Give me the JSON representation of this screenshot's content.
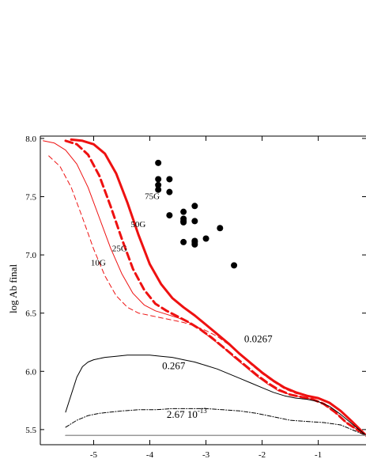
{
  "chart_data": {
    "type": "line",
    "ylabel": "log Ab final",
    "xlabel": "",
    "xlim": [
      -5.95,
      -0.15
    ],
    "ylim": [
      5.37,
      8.02
    ],
    "x_ticks": [
      -5,
      -4,
      -3,
      -2,
      -1
    ],
    "x_tick_labels": [
      "-5",
      "-4",
      "-3",
      "-2",
      "-1"
    ],
    "y_ticks": [
      5.5,
      6.0,
      6.5,
      7.0,
      7.5,
      8.0
    ],
    "y_tick_labels": [
      "5.5",
      "6.0",
      "6.5",
      "7.0",
      "7.5",
      "8.0"
    ],
    "series": [
      {
        "name": "10G",
        "color": "#ee1111",
        "style": "dashed-thin",
        "x": [
          -5.8,
          -5.6,
          -5.4,
          -5.2,
          -5.0,
          -4.8,
          -4.6,
          -4.4,
          -4.2,
          -4.0,
          -3.8,
          -3.6,
          -3.4,
          -3.2,
          -3.0,
          -2.8,
          -2.6,
          -2.4,
          -2.2,
          -2.0,
          -1.8,
          -1.6,
          -1.4,
          -1.2,
          -1.0,
          -0.8,
          -0.6,
          -0.4,
          -0.15
        ],
        "y": [
          7.85,
          7.76,
          7.58,
          7.32,
          7.05,
          6.82,
          6.65,
          6.55,
          6.5,
          6.48,
          6.46,
          6.44,
          6.42,
          6.39,
          6.35,
          6.3,
          6.23,
          6.15,
          6.06,
          5.98,
          5.91,
          5.85,
          5.81,
          5.79,
          5.77,
          5.73,
          5.66,
          5.57,
          5.45
        ]
      },
      {
        "name": "25G",
        "color": "#ee1111",
        "style": "solid-thin",
        "x": [
          -5.9,
          -5.7,
          -5.5,
          -5.3,
          -5.1,
          -4.9,
          -4.7,
          -4.5,
          -4.3,
          -4.1,
          -3.9,
          -3.7,
          -3.5,
          -3.3,
          -3.1,
          -2.9,
          -2.7,
          -2.5,
          -2.3,
          -2.1,
          -1.9,
          -1.7,
          -1.5,
          -1.3,
          -1.1,
          -0.9,
          -0.7,
          -0.5,
          -0.15
        ],
        "y": [
          7.98,
          7.96,
          7.9,
          7.78,
          7.58,
          7.32,
          7.06,
          6.84,
          6.67,
          6.57,
          6.52,
          6.49,
          6.46,
          6.42,
          6.36,
          6.28,
          6.21,
          6.12,
          6.04,
          5.96,
          5.89,
          5.83,
          5.8,
          5.78,
          5.76,
          5.72,
          5.65,
          5.56,
          5.45
        ]
      },
      {
        "name": "50G",
        "color": "#ee1111",
        "style": "dashed-thick",
        "x": [
          -5.5,
          -5.3,
          -5.1,
          -4.9,
          -4.7,
          -4.5,
          -4.3,
          -4.1,
          -3.9,
          -3.7,
          -3.5,
          -3.3,
          -3.1,
          -2.9,
          -2.7,
          -2.5,
          -2.3,
          -2.1,
          -1.9,
          -1.7,
          -1.5,
          -1.3,
          -1.1,
          -0.9,
          -0.7,
          -0.5,
          -0.15
        ],
        "y": [
          7.98,
          7.95,
          7.86,
          7.68,
          7.42,
          7.14,
          6.88,
          6.7,
          6.58,
          6.52,
          6.47,
          6.42,
          6.36,
          6.29,
          6.21,
          6.13,
          6.05,
          5.97,
          5.9,
          5.84,
          5.8,
          5.78,
          5.76,
          5.72,
          5.65,
          5.56,
          5.45
        ]
      },
      {
        "name": "75G",
        "color": "#ee1111",
        "style": "solid-thick",
        "x": [
          -5.4,
          -5.2,
          -5.0,
          -4.8,
          -4.6,
          -4.4,
          -4.2,
          -4.0,
          -3.8,
          -3.6,
          -3.4,
          -3.2,
          -3.0,
          -2.8,
          -2.6,
          -2.4,
          -2.2,
          -2.0,
          -1.8,
          -1.6,
          -1.4,
          -1.2,
          -1.0,
          -0.8,
          -0.6,
          -0.4,
          -0.15
        ],
        "y": [
          7.99,
          7.98,
          7.95,
          7.87,
          7.7,
          7.45,
          7.17,
          6.92,
          6.75,
          6.63,
          6.55,
          6.48,
          6.4,
          6.32,
          6.24,
          6.15,
          6.07,
          5.99,
          5.92,
          5.86,
          5.82,
          5.79,
          5.77,
          5.73,
          5.66,
          5.57,
          5.45
        ]
      },
      {
        "name": "0.267",
        "color": "#000000",
        "style": "solid-thin",
        "x": [
          -5.5,
          -5.4,
          -5.3,
          -5.2,
          -5.1,
          -5.0,
          -4.8,
          -4.6,
          -4.4,
          -4.2,
          -4.0,
          -3.8,
          -3.6,
          -3.4,
          -3.2,
          -3.0,
          -2.8,
          -2.6,
          -2.4,
          -2.2,
          -2.0,
          -1.8,
          -1.6,
          -1.4,
          -1.2,
          -1.0,
          -0.8,
          -0.6,
          -0.4,
          -0.15
        ],
        "y": [
          5.65,
          5.8,
          5.95,
          6.04,
          6.08,
          6.1,
          6.12,
          6.13,
          6.14,
          6.14,
          6.14,
          6.13,
          6.12,
          6.1,
          6.08,
          6.05,
          6.02,
          5.98,
          5.94,
          5.9,
          5.86,
          5.82,
          5.79,
          5.77,
          5.76,
          5.74,
          5.7,
          5.63,
          5.55,
          5.45
        ]
      },
      {
        "name": "2.67 10-13",
        "color": "#000000",
        "style": "dashdot",
        "x": [
          -5.5,
          -5.3,
          -5.1,
          -4.9,
          -4.7,
          -4.5,
          -4.2,
          -3.9,
          -3.6,
          -3.3,
          -3.0,
          -2.7,
          -2.4,
          -2.1,
          -1.8,
          -1.5,
          -1.2,
          -0.9,
          -0.6,
          -0.4,
          -0.15
        ],
        "y": [
          5.52,
          5.58,
          5.62,
          5.64,
          5.65,
          5.66,
          5.67,
          5.67,
          5.68,
          5.68,
          5.68,
          5.67,
          5.66,
          5.64,
          5.61,
          5.58,
          5.57,
          5.56,
          5.54,
          5.5,
          5.45
        ]
      },
      {
        "name": "baseline",
        "color": "#999999",
        "style": "solid-gray",
        "x": [
          -5.5,
          -0.15
        ],
        "y": [
          5.45,
          5.45
        ]
      }
    ],
    "observations": {
      "x": [
        -3.85,
        -3.85,
        -3.85,
        -3.85,
        -3.65,
        -3.65,
        -3.65,
        -3.4,
        -3.4,
        -3.4,
        -3.4,
        -3.4,
        -3.2,
        -3.2,
        -3.2,
        -3.2,
        -3.2,
        -3.0,
        -2.75,
        -2.5
      ],
      "y": [
        7.79,
        7.65,
        7.6,
        7.56,
        7.65,
        7.54,
        7.34,
        7.37,
        7.31,
        7.29,
        7.28,
        7.11,
        7.42,
        7.29,
        7.12,
        7.11,
        7.09,
        7.14,
        7.23,
        6.91
      ]
    },
    "annotations": [
      {
        "text": "75G",
        "x": -4.09,
        "y": 7.48
      },
      {
        "text": "50G",
        "x": -4.34,
        "y": 7.24
      },
      {
        "text": "25G",
        "x": -4.67,
        "y": 7.03
      },
      {
        "text": "10G",
        "x": -5.05,
        "y": 6.91
      },
      {
        "text": "0.0267",
        "x": -2.32,
        "y": 6.25
      },
      {
        "text": "0.267",
        "x": -3.78,
        "y": 6.02
      },
      {
        "text": "2.67 10",
        "sup": "-13",
        "x": -3.7,
        "y": 5.6
      }
    ]
  }
}
